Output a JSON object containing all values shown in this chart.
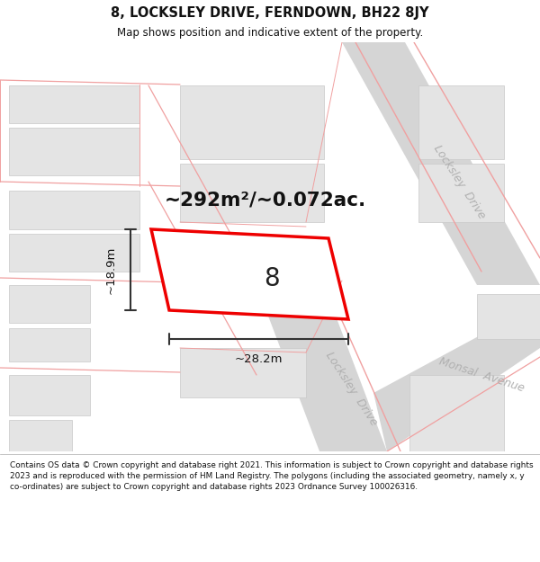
{
  "title": "8, LOCKSLEY DRIVE, FERNDOWN, BH22 8JY",
  "subtitle": "Map shows position and indicative extent of the property.",
  "footer": "Contains OS data © Crown copyright and database right 2021. This information is subject to Crown copyright and database rights 2023 and is reproduced with the permission of HM Land Registry. The polygons (including the associated geometry, namely x, y co-ordinates) are subject to Crown copyright and database rights 2023 Ordnance Survey 100026316.",
  "area_label": "~292m²/~0.072ac.",
  "width_label": "~28.2m",
  "height_label": "~18.9m",
  "plot_number": "8",
  "white": "#ffffff",
  "black": "#111111",
  "map_bg": "#f2f2f2",
  "road_fill": "#d5d5d5",
  "bld_fill": "#e4e4e4",
  "bld_edge": "#c8c8c8",
  "road_line": "#f0a0a0",
  "prop_color": "#ee0000",
  "street_color": "#b0b0b0",
  "dim_color": "#333333"
}
